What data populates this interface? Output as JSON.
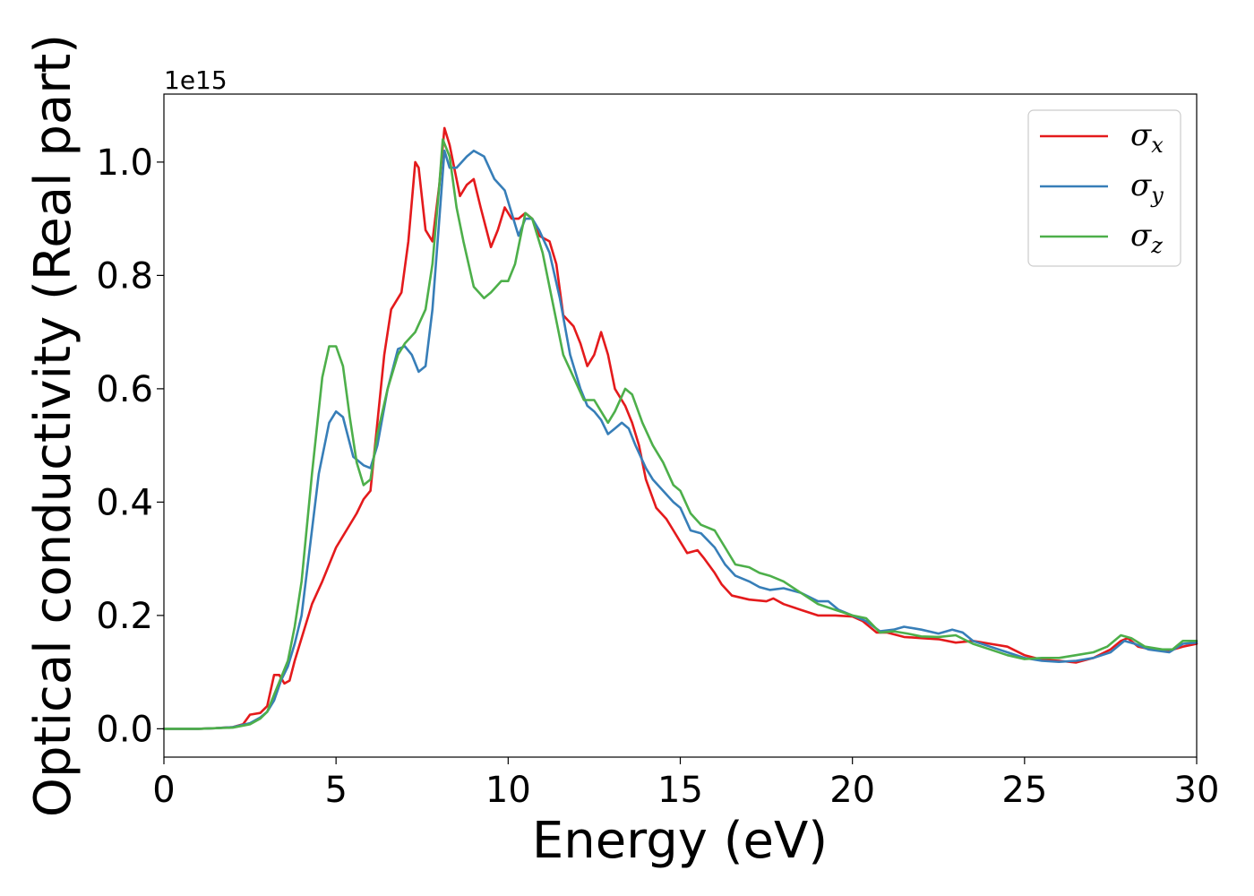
{
  "chart_data": {
    "type": "line",
    "xlabel": "Energy (eV)",
    "ylabel": "Optical conductivity (Real part)",
    "y_offset_text": "1e15",
    "xlim": [
      0,
      30
    ],
    "ylim": [
      -0.05,
      1.12
    ],
    "xticks": [
      0,
      5,
      10,
      15,
      20,
      25,
      30
    ],
    "xtick_labels": [
      "0",
      "5",
      "10",
      "15",
      "20",
      "25",
      "30"
    ],
    "yticks": [
      0.0,
      0.2,
      0.4,
      0.6,
      0.8,
      1.0
    ],
    "ytick_labels": [
      "0.0",
      "0.2",
      "0.4",
      "0.6",
      "0.8",
      "1.0"
    ],
    "grid": false,
    "legend_position": "top-right",
    "series": [
      {
        "name": "σx",
        "name_base": "σ",
        "name_sub": "x",
        "color": "#e41a1c",
        "points": [
          [
            0,
            0
          ],
          [
            1,
            0
          ],
          [
            1.5,
            0.001
          ],
          [
            2,
            0.003
          ],
          [
            2.3,
            0.008
          ],
          [
            2.5,
            0.025
          ],
          [
            2.8,
            0.028
          ],
          [
            3.0,
            0.04
          ],
          [
            3.2,
            0.095
          ],
          [
            3.35,
            0.095
          ],
          [
            3.5,
            0.08
          ],
          [
            3.65,
            0.085
          ],
          [
            3.8,
            0.12
          ],
          [
            4.0,
            0.16
          ],
          [
            4.3,
            0.22
          ],
          [
            4.6,
            0.26
          ],
          [
            5.0,
            0.32
          ],
          [
            5.3,
            0.35
          ],
          [
            5.6,
            0.38
          ],
          [
            5.8,
            0.405
          ],
          [
            6.0,
            0.42
          ],
          [
            6.2,
            0.54
          ],
          [
            6.4,
            0.66
          ],
          [
            6.6,
            0.74
          ],
          [
            6.9,
            0.77
          ],
          [
            7.1,
            0.86
          ],
          [
            7.3,
            1.0
          ],
          [
            7.4,
            0.99
          ],
          [
            7.6,
            0.88
          ],
          [
            7.8,
            0.86
          ],
          [
            8.0,
            0.96
          ],
          [
            8.15,
            1.06
          ],
          [
            8.3,
            1.03
          ],
          [
            8.6,
            0.94
          ],
          [
            8.8,
            0.96
          ],
          [
            9.0,
            0.97
          ],
          [
            9.2,
            0.92
          ],
          [
            9.5,
            0.85
          ],
          [
            9.7,
            0.88
          ],
          [
            9.9,
            0.92
          ],
          [
            10.1,
            0.9
          ],
          [
            10.3,
            0.9
          ],
          [
            10.5,
            0.91
          ],
          [
            10.7,
            0.9
          ],
          [
            10.9,
            0.87
          ],
          [
            11.2,
            0.86
          ],
          [
            11.4,
            0.82
          ],
          [
            11.6,
            0.73
          ],
          [
            11.9,
            0.71
          ],
          [
            12.1,
            0.68
          ],
          [
            12.3,
            0.64
          ],
          [
            12.5,
            0.66
          ],
          [
            12.7,
            0.7
          ],
          [
            12.9,
            0.66
          ],
          [
            13.1,
            0.6
          ],
          [
            13.4,
            0.57
          ],
          [
            13.6,
            0.54
          ],
          [
            13.8,
            0.5
          ],
          [
            14.0,
            0.44
          ],
          [
            14.3,
            0.39
          ],
          [
            14.6,
            0.37
          ],
          [
            14.8,
            0.35
          ],
          [
            15.0,
            0.33
          ],
          [
            15.2,
            0.31
          ],
          [
            15.5,
            0.315
          ],
          [
            15.7,
            0.3
          ],
          [
            16.0,
            0.275
          ],
          [
            16.2,
            0.255
          ],
          [
            16.5,
            0.235
          ],
          [
            17.0,
            0.228
          ],
          [
            17.5,
            0.225
          ],
          [
            17.7,
            0.23
          ],
          [
            18.0,
            0.22
          ],
          [
            18.5,
            0.21
          ],
          [
            19.0,
            0.2
          ],
          [
            19.5,
            0.2
          ],
          [
            20.0,
            0.198
          ],
          [
            20.3,
            0.19
          ],
          [
            20.7,
            0.17
          ],
          [
            21.0,
            0.17
          ],
          [
            21.5,
            0.162
          ],
          [
            22.0,
            0.16
          ],
          [
            22.5,
            0.158
          ],
          [
            23.0,
            0.152
          ],
          [
            23.5,
            0.155
          ],
          [
            24.0,
            0.15
          ],
          [
            24.5,
            0.145
          ],
          [
            25.0,
            0.13
          ],
          [
            25.5,
            0.122
          ],
          [
            26.0,
            0.12
          ],
          [
            26.5,
            0.117
          ],
          [
            27.0,
            0.125
          ],
          [
            27.5,
            0.14
          ],
          [
            27.8,
            0.155
          ],
          [
            28.0,
            0.16
          ],
          [
            28.3,
            0.145
          ],
          [
            28.7,
            0.14
          ],
          [
            29.2,
            0.138
          ],
          [
            29.6,
            0.145
          ],
          [
            30,
            0.15
          ]
        ]
      },
      {
        "name": "σy",
        "name_base": "σ",
        "name_sub": "y",
        "color": "#377eb8",
        "points": [
          [
            0,
            0
          ],
          [
            1,
            0
          ],
          [
            1.5,
            0.001
          ],
          [
            2,
            0.003
          ],
          [
            2.5,
            0.01
          ],
          [
            2.8,
            0.02
          ],
          [
            3.0,
            0.03
          ],
          [
            3.2,
            0.05
          ],
          [
            3.4,
            0.085
          ],
          [
            3.6,
            0.11
          ],
          [
            3.8,
            0.15
          ],
          [
            4.0,
            0.2
          ],
          [
            4.2,
            0.3
          ],
          [
            4.5,
            0.45
          ],
          [
            4.8,
            0.54
          ],
          [
            5.0,
            0.56
          ],
          [
            5.2,
            0.55
          ],
          [
            5.5,
            0.48
          ],
          [
            5.8,
            0.465
          ],
          [
            6.0,
            0.46
          ],
          [
            6.2,
            0.5
          ],
          [
            6.5,
            0.6
          ],
          [
            6.8,
            0.67
          ],
          [
            7.0,
            0.675
          ],
          [
            7.2,
            0.66
          ],
          [
            7.4,
            0.63
          ],
          [
            7.6,
            0.64
          ],
          [
            7.8,
            0.74
          ],
          [
            8.0,
            0.9
          ],
          [
            8.15,
            1.02
          ],
          [
            8.3,
            0.99
          ],
          [
            8.5,
            0.99
          ],
          [
            8.8,
            1.01
          ],
          [
            9.0,
            1.02
          ],
          [
            9.3,
            1.01
          ],
          [
            9.6,
            0.97
          ],
          [
            9.9,
            0.95
          ],
          [
            10.1,
            0.91
          ],
          [
            10.3,
            0.87
          ],
          [
            10.5,
            0.9
          ],
          [
            10.7,
            0.9
          ],
          [
            10.9,
            0.88
          ],
          [
            11.2,
            0.84
          ],
          [
            11.5,
            0.76
          ],
          [
            11.8,
            0.66
          ],
          [
            12.1,
            0.6
          ],
          [
            12.3,
            0.57
          ],
          [
            12.5,
            0.56
          ],
          [
            12.7,
            0.545
          ],
          [
            12.9,
            0.52
          ],
          [
            13.1,
            0.53
          ],
          [
            13.3,
            0.54
          ],
          [
            13.5,
            0.53
          ],
          [
            13.7,
            0.5
          ],
          [
            14.0,
            0.46
          ],
          [
            14.2,
            0.44
          ],
          [
            14.5,
            0.42
          ],
          [
            14.8,
            0.4
          ],
          [
            15.0,
            0.39
          ],
          [
            15.3,
            0.35
          ],
          [
            15.6,
            0.345
          ],
          [
            16.0,
            0.32
          ],
          [
            16.3,
            0.29
          ],
          [
            16.6,
            0.27
          ],
          [
            17.0,
            0.26
          ],
          [
            17.3,
            0.25
          ],
          [
            17.6,
            0.245
          ],
          [
            18.0,
            0.248
          ],
          [
            18.5,
            0.24
          ],
          [
            19.0,
            0.225
          ],
          [
            19.3,
            0.225
          ],
          [
            19.6,
            0.21
          ],
          [
            20.0,
            0.2
          ],
          [
            20.4,
            0.19
          ],
          [
            20.8,
            0.172
          ],
          [
            21.2,
            0.175
          ],
          [
            21.5,
            0.18
          ],
          [
            22.0,
            0.175
          ],
          [
            22.5,
            0.168
          ],
          [
            22.9,
            0.175
          ],
          [
            23.2,
            0.17
          ],
          [
            23.5,
            0.155
          ],
          [
            24.0,
            0.145
          ],
          [
            24.5,
            0.135
          ],
          [
            25.0,
            0.125
          ],
          [
            25.5,
            0.12
          ],
          [
            26.0,
            0.118
          ],
          [
            26.5,
            0.12
          ],
          [
            27.0,
            0.125
          ],
          [
            27.5,
            0.135
          ],
          [
            27.9,
            0.155
          ],
          [
            28.2,
            0.15
          ],
          [
            28.6,
            0.14
          ],
          [
            29.2,
            0.135
          ],
          [
            29.6,
            0.15
          ],
          [
            30,
            0.152
          ]
        ]
      },
      {
        "name": "σz",
        "name_base": "σ",
        "name_sub": "z",
        "color": "#4daf4a",
        "points": [
          [
            0,
            0
          ],
          [
            1,
            0
          ],
          [
            1.5,
            0.001
          ],
          [
            2,
            0.002
          ],
          [
            2.5,
            0.008
          ],
          [
            2.8,
            0.018
          ],
          [
            3.0,
            0.03
          ],
          [
            3.2,
            0.06
          ],
          [
            3.4,
            0.09
          ],
          [
            3.6,
            0.12
          ],
          [
            3.8,
            0.18
          ],
          [
            4.0,
            0.26
          ],
          [
            4.3,
            0.45
          ],
          [
            4.6,
            0.62
          ],
          [
            4.8,
            0.675
          ],
          [
            5.0,
            0.675
          ],
          [
            5.2,
            0.64
          ],
          [
            5.4,
            0.55
          ],
          [
            5.6,
            0.47
          ],
          [
            5.8,
            0.43
          ],
          [
            6.0,
            0.44
          ],
          [
            6.2,
            0.52
          ],
          [
            6.5,
            0.6
          ],
          [
            6.8,
            0.66
          ],
          [
            7.0,
            0.68
          ],
          [
            7.3,
            0.7
          ],
          [
            7.6,
            0.74
          ],
          [
            7.8,
            0.82
          ],
          [
            8.0,
            0.96
          ],
          [
            8.1,
            1.04
          ],
          [
            8.3,
            1.01
          ],
          [
            8.5,
            0.92
          ],
          [
            8.7,
            0.86
          ],
          [
            9.0,
            0.78
          ],
          [
            9.3,
            0.76
          ],
          [
            9.5,
            0.77
          ],
          [
            9.8,
            0.79
          ],
          [
            10.0,
            0.79
          ],
          [
            10.2,
            0.82
          ],
          [
            10.5,
            0.91
          ],
          [
            10.7,
            0.9
          ],
          [
            11.0,
            0.84
          ],
          [
            11.3,
            0.75
          ],
          [
            11.6,
            0.66
          ],
          [
            11.9,
            0.62
          ],
          [
            12.2,
            0.58
          ],
          [
            12.5,
            0.58
          ],
          [
            12.7,
            0.56
          ],
          [
            12.9,
            0.54
          ],
          [
            13.1,
            0.56
          ],
          [
            13.4,
            0.6
          ],
          [
            13.6,
            0.59
          ],
          [
            13.9,
            0.54
          ],
          [
            14.2,
            0.5
          ],
          [
            14.5,
            0.47
          ],
          [
            14.8,
            0.43
          ],
          [
            15.0,
            0.42
          ],
          [
            15.3,
            0.38
          ],
          [
            15.6,
            0.36
          ],
          [
            16.0,
            0.35
          ],
          [
            16.3,
            0.32
          ],
          [
            16.6,
            0.29
          ],
          [
            17.0,
            0.285
          ],
          [
            17.3,
            0.275
          ],
          [
            17.6,
            0.27
          ],
          [
            18.0,
            0.26
          ],
          [
            18.5,
            0.24
          ],
          [
            19.0,
            0.22
          ],
          [
            19.5,
            0.21
          ],
          [
            20.0,
            0.2
          ],
          [
            20.4,
            0.195
          ],
          [
            20.8,
            0.17
          ],
          [
            21.2,
            0.172
          ],
          [
            21.6,
            0.168
          ],
          [
            22.0,
            0.163
          ],
          [
            22.5,
            0.162
          ],
          [
            23.0,
            0.165
          ],
          [
            23.5,
            0.15
          ],
          [
            24.0,
            0.14
          ],
          [
            24.5,
            0.13
          ],
          [
            25.0,
            0.123
          ],
          [
            25.5,
            0.125
          ],
          [
            26.0,
            0.125
          ],
          [
            26.5,
            0.13
          ],
          [
            27.0,
            0.135
          ],
          [
            27.4,
            0.145
          ],
          [
            27.8,
            0.165
          ],
          [
            28.1,
            0.16
          ],
          [
            28.5,
            0.145
          ],
          [
            29.0,
            0.14
          ],
          [
            29.3,
            0.14
          ],
          [
            29.6,
            0.155
          ],
          [
            30,
            0.155
          ]
        ]
      }
    ]
  }
}
